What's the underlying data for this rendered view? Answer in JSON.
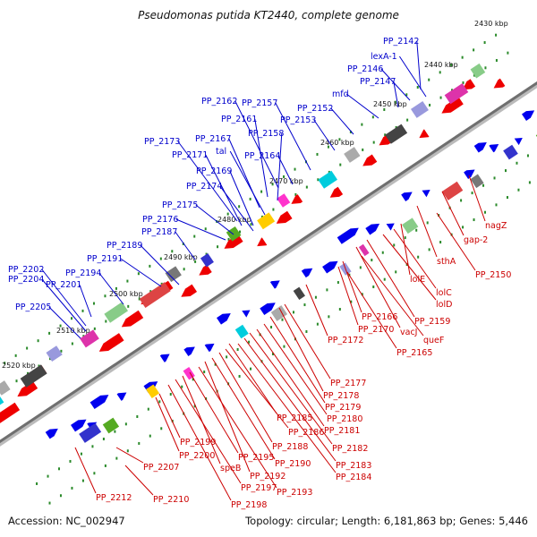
{
  "title": "Pseudomonas putida KT2440, complete genome",
  "footer": {
    "accession": "Accession: NC_002947",
    "summary": "Topology: circular; Length: 6,181,863 bp; Genes: 5,446"
  },
  "colors": {
    "backbone": "#777777",
    "forward_labels": "#0000cc",
    "reverse_labels": "#cc0000",
    "forward_genes": "#0000ee",
    "reverse_genes": "#ee0000",
    "tick_dots": "#2a8a2a"
  },
  "ticks": [
    "2430 kbp",
    "2440 kbp",
    "2450 kbp",
    "2460 kbp",
    "2470 kbp",
    "2480 kbp",
    "2490 kbp",
    "2500 kbp",
    "2510 kbp",
    "2520 kbp"
  ],
  "forward_labels": [
    "PP_2142",
    "lexA-1",
    "PP_2146",
    "PP_2147",
    "mfd",
    "PP_2152",
    "PP_2153",
    "PP_2157",
    "PP_2162",
    "PP_2161",
    "PP_2158",
    "PP_2167",
    "tal",
    "PP_2164",
    "PP_2173",
    "PP_2171",
    "PP_2169",
    "PP_2174",
    "PP_2175",
    "PP_2176",
    "PP_2187",
    "PP_2189",
    "PP_2191",
    "PP_2194",
    "PP_2202",
    "PP_2204",
    "PP_2201",
    "PP_2205"
  ],
  "reverse_labels": [
    "nagZ",
    "gap-2",
    "sthA",
    "PP_2150",
    "lolE",
    "lolC",
    "lolD",
    "PP_2159",
    "vacJ",
    "queF",
    "PP_2166",
    "PP_2170",
    "PP_2165",
    "PP_2172",
    "PP_2177",
    "PP_2178",
    "PP_2179",
    "PP_2180",
    "PP_2181",
    "PP_2182",
    "PP_2183",
    "PP_2184",
    "PP_2185",
    "PP_2186",
    "PP_2188",
    "PP_2190",
    "PP_2192",
    "PP_2193",
    "PP_2195",
    "speB",
    "PP_2197",
    "PP_2198",
    "PP_2199",
    "PP_2200",
    "PP_2207",
    "PP_2210",
    "PP_2212"
  ]
}
